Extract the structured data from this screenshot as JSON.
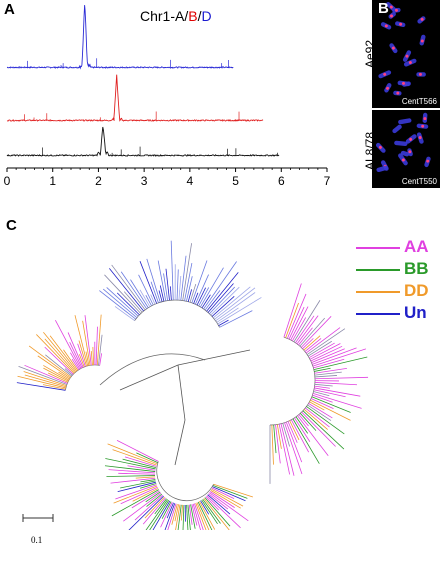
{
  "panel_a": {
    "letter": "A",
    "title_prefix": "Chr1-A/",
    "title_b": "B",
    "title_sep": "/",
    "title_d": "D",
    "x_ticks": [
      "0",
      "1",
      "2",
      "3",
      "4",
      "5",
      "6",
      "7"
    ],
    "colors": {
      "A": "#2b2bd6",
      "B": "#e02020",
      "D": "#111111"
    }
  },
  "panel_b": {
    "letter": "B",
    "top_label": "Ae92",
    "top_probe": "CentT566",
    "bottom_label": "AL8/78",
    "bottom_probe": "CentT550"
  },
  "panel_c": {
    "letter": "C",
    "legend": [
      {
        "label": "AA",
        "color": "#e040e0"
      },
      {
        "label": "BB",
        "color": "#2a9a2a"
      },
      {
        "label": "DD",
        "color": "#f09a2a"
      },
      {
        "label": "Un",
        "color": "#2020c8"
      }
    ],
    "scale_label": "0.1"
  },
  "chart_data": [
    {
      "type": "line",
      "title": "Chr1-A/B/D",
      "xlabel": "",
      "ylabel": "",
      "xlim": [
        0,
        7
      ],
      "x_ticks": [
        0,
        1,
        2,
        3,
        4,
        5,
        6,
        7
      ],
      "series": [
        {
          "name": "A",
          "peak_x": 1.7,
          "x_range": [
            0,
            4.95
          ]
        },
        {
          "name": "B",
          "peak_x": 2.4,
          "x_range": [
            0,
            5.6
          ]
        },
        {
          "name": "D",
          "peak_x": 2.1,
          "x_range": [
            0,
            5.95
          ]
        }
      ]
    }
  ]
}
